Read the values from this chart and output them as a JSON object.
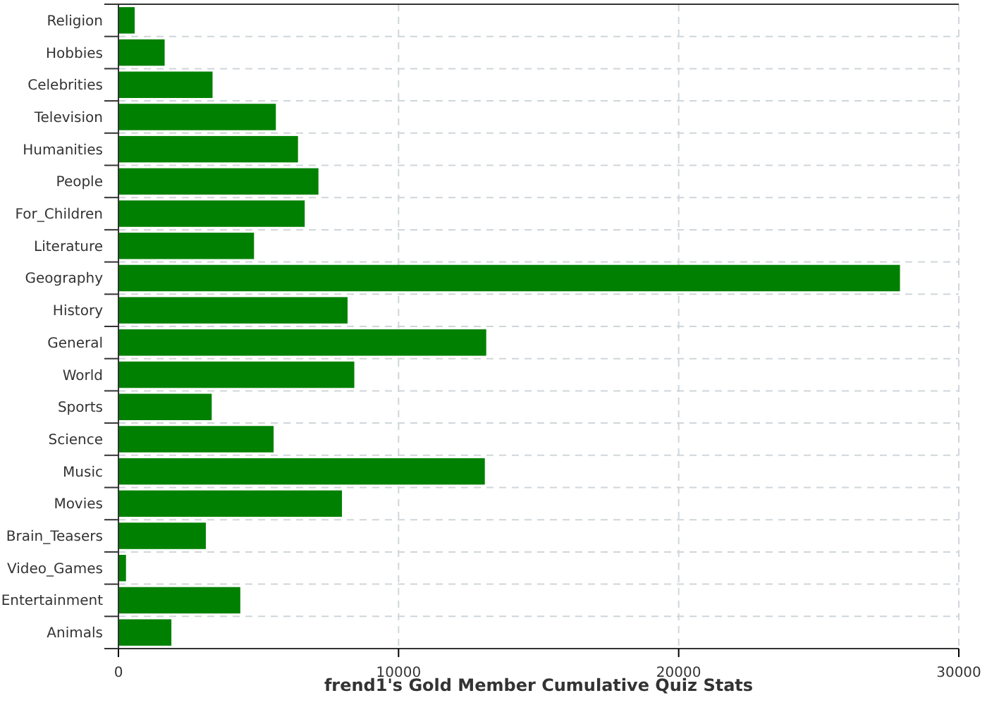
{
  "chart_data": {
    "type": "bar",
    "orientation": "horizontal",
    "xlabel": "frend1's Gold Member Cumulative Quiz Stats",
    "categories": [
      "Religion",
      "Hobbies",
      "Celebrities",
      "Television",
      "Humanities",
      "People",
      "For_Children",
      "Literature",
      "Geography",
      "History",
      "General",
      "World",
      "Sports",
      "Science",
      "Music",
      "Movies",
      "Brain_Teasers",
      "Video_Games",
      "Entertainment",
      "Animals"
    ],
    "values": [
      580,
      1650,
      3360,
      5620,
      6410,
      7140,
      6650,
      4840,
      27900,
      8180,
      13130,
      8420,
      3330,
      5540,
      13080,
      7980,
      3120,
      270,
      4350,
      1890
    ],
    "color": "#008000",
    "xlim": [
      0,
      30000
    ],
    "xticks": [
      0,
      10000,
      20000,
      30000
    ],
    "grid": true
  }
}
